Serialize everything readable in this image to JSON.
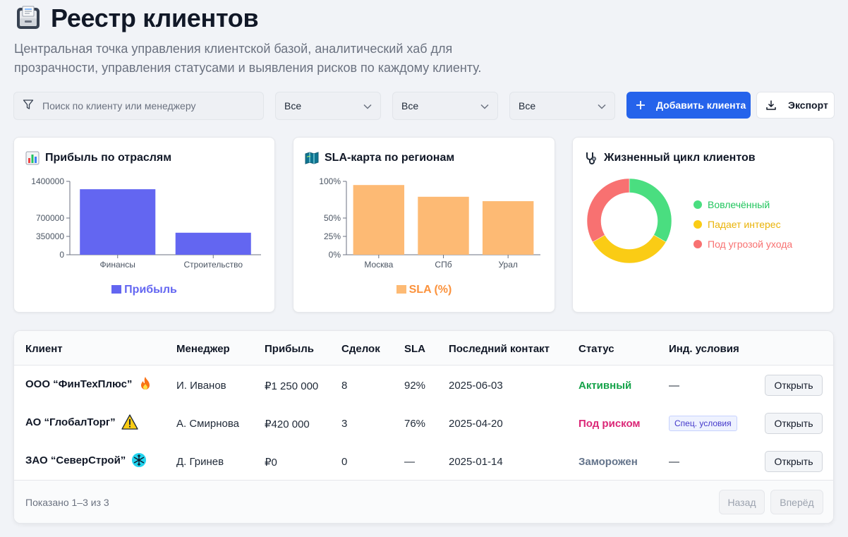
{
  "header": {
    "title": "Реестр клиентов",
    "subtitle": "Центральная точка управления клиентской базой, аналитический хаб для прозрачности, управления статусами и выявления рисков по каждому клиенту."
  },
  "toolbar": {
    "search_placeholder": "Поиск по клиенту или менеджеру",
    "filters": [
      "Все",
      "Все",
      "Все"
    ],
    "add_label": "Добавить клиента",
    "export_label": "Экспорт",
    "accent": "#2563eb"
  },
  "charts": {
    "profit": {
      "title": "Прибыль по отраслям",
      "icon": "bar-chart-icon",
      "legend": "Прибыль",
      "color": "#6366f1"
    },
    "sla": {
      "title": "SLA-карта по регионам",
      "icon": "map-icon",
      "legend": "SLA (%)",
      "color": "#fdba74"
    },
    "lifecycle": {
      "title": "Жизненный цикл клиентов",
      "icon": "stethoscope-icon",
      "legend": [
        "Вовлечённый",
        "Падает интерес",
        "Под угрозой ухода"
      ],
      "legend_colors": [
        "#22c55e",
        "#eab308",
        "#f87171"
      ]
    }
  },
  "chart_data": [
    {
      "type": "bar",
      "title": "Прибыль по отраслям",
      "categories": [
        "Финансы",
        "Строительство"
      ],
      "series": [
        {
          "name": "Прибыль",
          "values": [
            1250000,
            420000
          ]
        }
      ],
      "yticks": [
        "0",
        "350000",
        "700000",
        "1400000"
      ],
      "ylim": [
        0,
        1400000
      ],
      "legend_position": "bottom"
    },
    {
      "type": "bar",
      "title": "SLA-карта по регионам",
      "categories": [
        "Москва",
        "СПб",
        "Урал"
      ],
      "series": [
        {
          "name": "SLA (%)",
          "values": [
            95,
            79,
            73
          ]
        }
      ],
      "yticks": [
        "0%",
        "25%",
        "50%",
        "100%"
      ],
      "ylim": [
        0,
        100
      ],
      "legend_position": "bottom"
    },
    {
      "type": "pie",
      "title": "Жизненный цикл клиентов",
      "labels": [
        "Вовлечённый",
        "Падает интерес",
        "Под угрозой ухода"
      ],
      "values": [
        1,
        1,
        1
      ],
      "colors": [
        "#4ade80",
        "#facc15",
        "#f87171"
      ],
      "legend_position": "right"
    }
  ],
  "table": {
    "headers": [
      "Клиент",
      "Менеджер",
      "Прибыль",
      "Сделок",
      "SLA",
      "Последний контакт",
      "Статус",
      "Инд. условия"
    ],
    "rows": [
      {
        "client": "ООО “ФинТехПлюс”",
        "icon": "fire-icon",
        "manager": "И. Иванов",
        "profit": "₽1 250 000",
        "deals": "8",
        "sla": "92%",
        "last_contact": "2025-06-03",
        "status": "Активный",
        "status_color": "#16a34a",
        "terms": "—",
        "action": "Открыть"
      },
      {
        "client": "АО “ГлобалТорг”",
        "icon": "warning-icon",
        "manager": "А. Смирнова",
        "profit": "₽420 000",
        "deals": "3",
        "sla": "76%",
        "last_contact": "2025-04-20",
        "status": "Под риском",
        "status_color": "#db2777",
        "terms": "Спец. условия",
        "action": "Открыть"
      },
      {
        "client": "ЗАО “СеверСтрой”",
        "icon": "snowflake-icon",
        "manager": "Д. Гринев",
        "profit": "₽0",
        "deals": "0",
        "sla": "—",
        "last_contact": "2025-01-14",
        "status": "Заморожен",
        "status_color": "#64748b",
        "terms": "—",
        "action": "Открыть"
      }
    ],
    "footer": "Показано 1–3 из 3",
    "prev_label": "Назад",
    "next_label": "Вперёд"
  }
}
